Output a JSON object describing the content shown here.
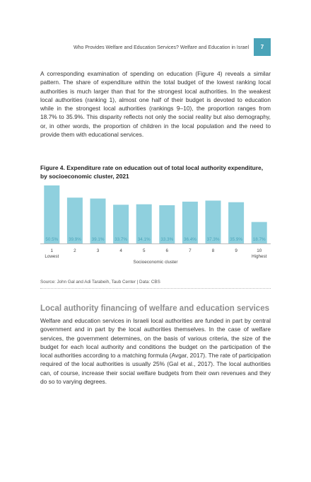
{
  "header": {
    "running_title": "Who Provides Welfare and Education Services? Welfare and Education in Israel",
    "page_number": "7"
  },
  "paragraph_1": "A corresponding examination of spending on education (Figure 4) reveals a similar pattern. The share of expenditure within the total budget of the lowest ranking local authorities is much larger than that for the strongest local authorities. In the weakest local authorities (ranking 1), almost one half of their budget is devoted to education while in the strongest local authorities (rankings 9–10), the proportion ranges from 18.7% to 35.9%. This disparity reflects not only the social reality but also demography, or, in other words, the proportion of children in the local population and the need to provide them with educational services.",
  "figure": {
    "title": "Figure 4. Expenditure rate on education out of total local authority expenditure, by socioeconomic cluster, 2021",
    "source": "Source: John Gal and Adi Tarabeih, Taub Center | Data: CBS"
  },
  "chart_data": {
    "type": "bar",
    "title": "Figure 4. Expenditure rate on education out of total local authority expenditure, by socioeconomic cluster, 2021",
    "categories": [
      "1",
      "2",
      "3",
      "4",
      "5",
      "6",
      "7",
      "8",
      "9",
      "10"
    ],
    "category_sublabels": {
      "1": "Lowest",
      "10": "Highest"
    },
    "values": [
      50.5,
      39.9,
      39.1,
      33.7,
      34.1,
      33.3,
      36.4,
      37.3,
      35.9,
      18.7
    ],
    "data_labels": [
      "50.5%",
      "39.9%",
      "39.1%",
      "33.7%",
      "34.1%",
      "33.3%",
      "36.4%",
      "37.3%",
      "35.9%",
      "18.7%"
    ],
    "xlabel": "Socioeconomic cluster",
    "ylabel": "",
    "ylim": [
      0,
      50.5
    ],
    "grid": false,
    "bar_color": "#8fd0de",
    "label_color": "#4aa3b8"
  },
  "section": {
    "heading": "Local authority financing of welfare and education services",
    "paragraph": "Welfare and education services in Israeli local authorities are funded in part by central government and in part by the local authorities themselves. In the case of welfare services, the government determines, on the basis of various criteria, the size of the budget for each local authority and conditions the budget on the participation of the local authorities according to a matching formula (Avgar, 2017). The rate of participation required of the local authorities is usually 25% (Gal et al., 2017). The local authorities can, of course, increase their social welfare budgets from their own revenues and they do so to varying degrees."
  },
  "colors": {
    "accent": "#4aa3b8",
    "heading_gray": "#8c8c8c"
  }
}
